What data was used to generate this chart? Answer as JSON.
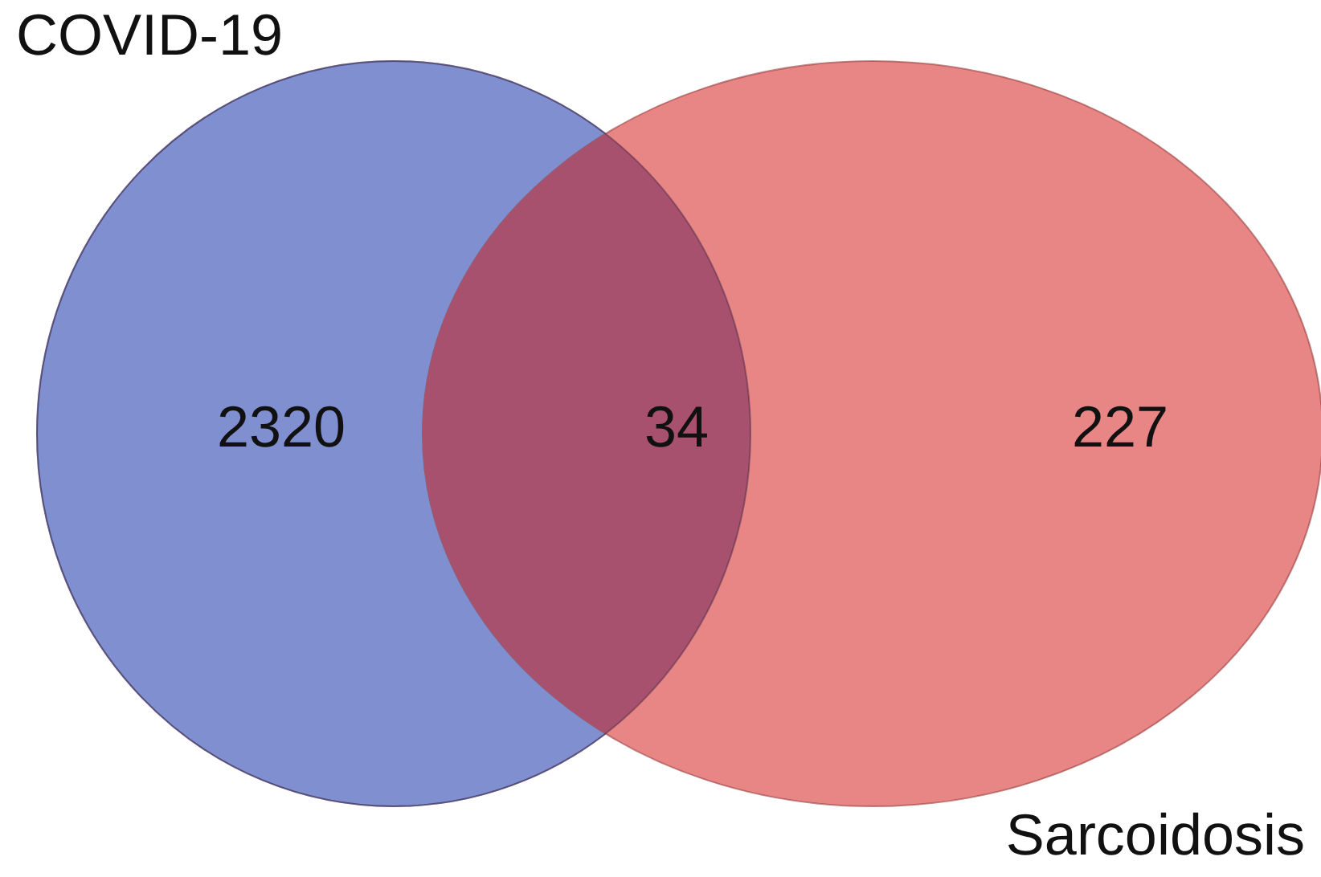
{
  "chart_data": {
    "type": "other",
    "categories": [
      "COVID-19",
      null,
      "Sarcoidosis"
    ],
    "values": [
      2320,
      34,
      227
    ],
    "colors": [
      "#7f8fcf",
      "#a8516f",
      "#e88585"
    ],
    "data_labels": true
  }
}
